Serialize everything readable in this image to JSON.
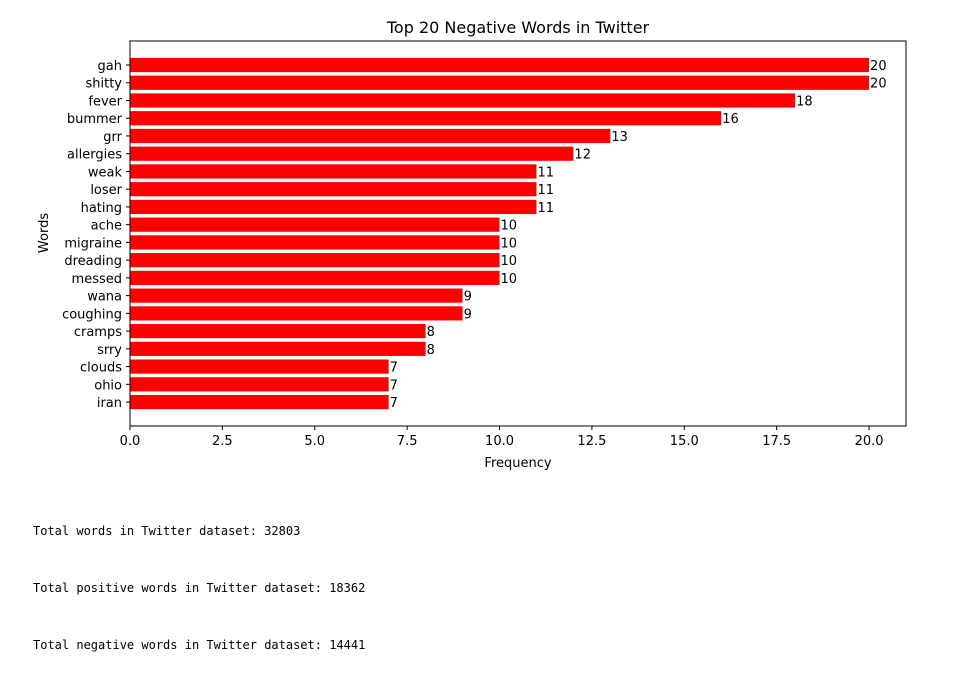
{
  "chart_data": {
    "type": "bar",
    "orientation": "horizontal",
    "title": "Top 20 Negative Words in Twitter",
    "xlabel": "Frequency",
    "ylabel": "Words",
    "categories": [
      "gah",
      "shitty",
      "fever",
      "bummer",
      "grr",
      "allergies",
      "weak",
      "loser",
      "hating",
      "ache",
      "migraine",
      "dreading",
      "messed",
      "wana",
      "coughing",
      "cramps",
      "srry",
      "clouds",
      "ohio",
      "iran"
    ],
    "values": [
      20,
      20,
      18,
      16,
      13,
      12,
      11,
      11,
      11,
      10,
      10,
      10,
      10,
      9,
      9,
      8,
      8,
      7,
      7,
      7
    ],
    "data_labels": [
      "20",
      "20",
      "18",
      "16",
      "13",
      "12",
      "11",
      "11",
      "11",
      "10",
      "10",
      "10",
      "10",
      "9",
      "9",
      "8",
      "8",
      "7",
      "7",
      "7"
    ],
    "xlim": [
      0,
      21
    ],
    "xticks": [
      0,
      2.5,
      5,
      7.5,
      10,
      12.5,
      15,
      17.5,
      20
    ],
    "xtick_labels": [
      "0.0",
      "2.5",
      "5.0",
      "7.5",
      "10.0",
      "12.5",
      "15.0",
      "17.5",
      "20.0"
    ],
    "bar_color": "#ff0000",
    "grid": false,
    "legend": "none"
  },
  "console": {
    "lines": [
      "Total words in Twitter dataset: 32803",
      "Total positive words in Twitter dataset: 18362",
      "Total negative words in Twitter dataset: 14441"
    ]
  }
}
